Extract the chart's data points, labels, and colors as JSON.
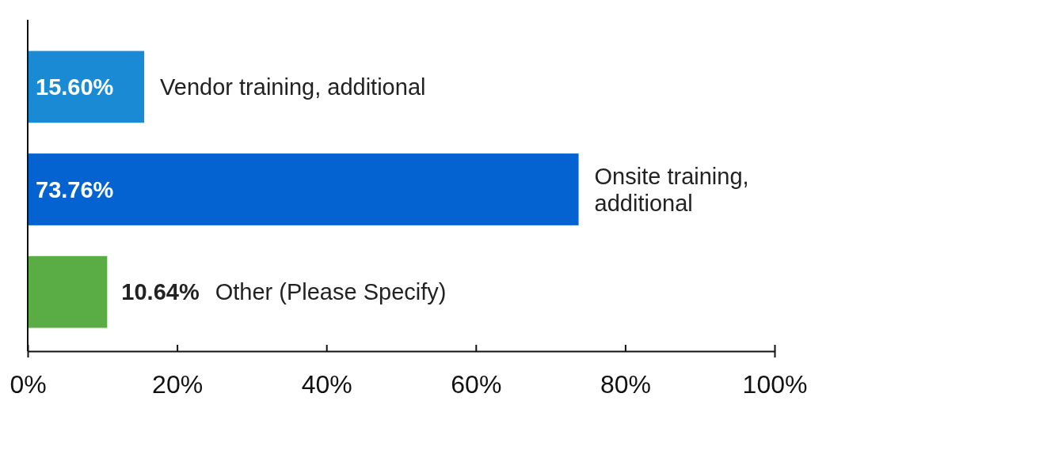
{
  "chart_data": {
    "type": "bar",
    "orientation": "horizontal",
    "categories": [
      "Vendor training, additional",
      "Onsite training, additional",
      "Other (Please Specify)"
    ],
    "values": [
      15.6,
      73.76,
      10.64
    ],
    "colors": [
      "#1a8ad4",
      "#0463d0",
      "#5aac45"
    ],
    "value_labels": [
      "15.60%",
      "73.76%",
      "10.64%"
    ],
    "xlim": [
      0,
      100
    ],
    "xticks": [
      {
        "value": 0,
        "label": "0%"
      },
      {
        "value": 20,
        "label": "20%"
      },
      {
        "value": 40,
        "label": "40%"
      },
      {
        "value": 60,
        "label": "60%"
      },
      {
        "value": 80,
        "label": "80%"
      },
      {
        "value": 100,
        "label": "100%"
      }
    ],
    "grid": false
  }
}
